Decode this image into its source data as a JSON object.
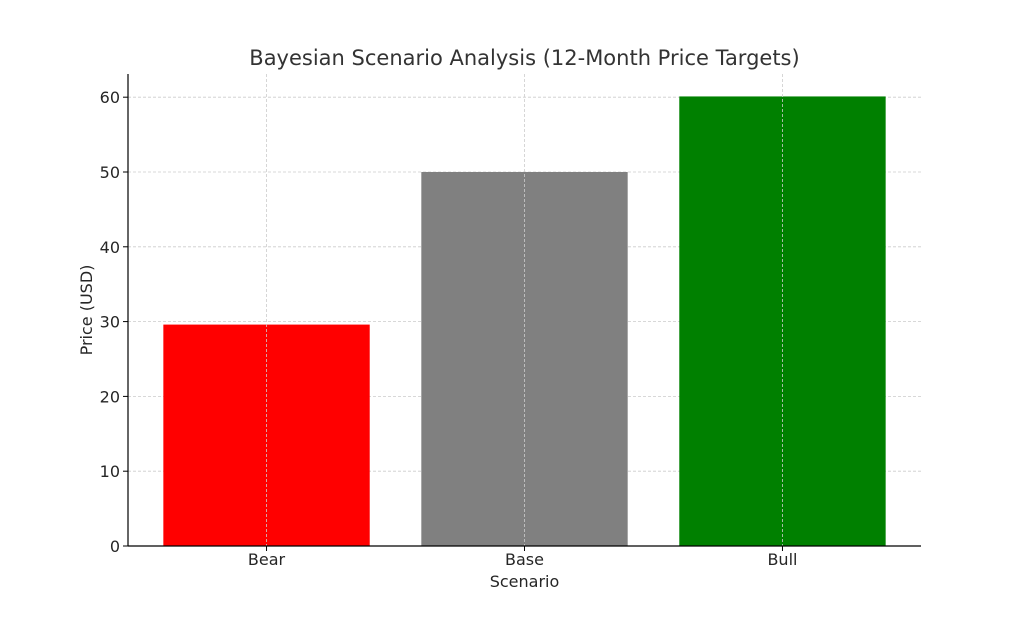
{
  "chart_data": {
    "type": "bar",
    "title": "Bayesian Scenario Analysis (12-Month Price Targets)",
    "xlabel": "Scenario",
    "ylabel": "Price (USD)",
    "categories": [
      "Bear",
      "Base",
      "Bull"
    ],
    "values": [
      29.6,
      50,
      60.1
    ],
    "colors": [
      "#ff0000",
      "#808080",
      "#008000"
    ],
    "ylim": [
      0,
      63.1
    ],
    "yticks": [
      0,
      10,
      20,
      30,
      40,
      50,
      60
    ],
    "grid": true
  }
}
